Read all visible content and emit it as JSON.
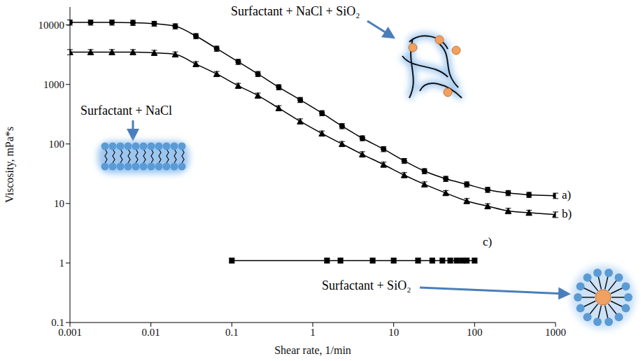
{
  "chart_data": {
    "type": "line",
    "log": true,
    "grid": false,
    "x_label": "Shear rate, 1/min",
    "y_label": "Viscosity, mPa*s",
    "xlim": [
      0.001,
      1000
    ],
    "ylim": [
      0.1,
      20000
    ],
    "xticks": [
      0.001,
      0.01,
      0.1,
      1,
      10,
      100,
      1000
    ],
    "yticks": [
      0.1,
      1,
      10,
      100,
      1000,
      10000
    ],
    "series": [
      {
        "name": "a)",
        "annotation": "Surfactant + NaCl + SiO₂",
        "color": "#000000",
        "marker": "circle",
        "line_style": "solid",
        "x": [
          0.001,
          0.0018,
          0.0033,
          0.006,
          0.011,
          0.02,
          0.036,
          0.065,
          0.12,
          0.21,
          0.38,
          0.7,
          1.3,
          2.3,
          4.1,
          7.5,
          13.5,
          24,
          44,
          80,
          145,
          260,
          470,
          1000
        ],
        "values": [
          11000,
          11000,
          11000,
          10900,
          10500,
          9500,
          6500,
          4000,
          2400,
          1500,
          900,
          550,
          330,
          200,
          125,
          82,
          52,
          35,
          26,
          21,
          17,
          15,
          14,
          13.5
        ],
        "errors": [
          1100,
          1100,
          1100,
          1100,
          1000,
          950,
          650,
          400,
          240,
          150,
          90,
          55,
          33,
          20,
          12,
          8,
          5,
          3.5,
          2.6,
          2.1,
          1.7,
          1.5,
          1.4,
          1.4
        ]
      },
      {
        "name": "b)",
        "annotation": "Surfactant + NaCl",
        "color": "#000000",
        "marker": "triangle",
        "line_style": "solid",
        "x": [
          0.001,
          0.0018,
          0.0033,
          0.006,
          0.011,
          0.02,
          0.036,
          0.065,
          0.12,
          0.21,
          0.38,
          0.7,
          1.3,
          2.3,
          4.1,
          7.5,
          13.5,
          24,
          44,
          80,
          145,
          260,
          470,
          1000
        ],
        "values": [
          3500,
          3500,
          3500,
          3500,
          3400,
          3200,
          2200,
          1500,
          950,
          650,
          400,
          240,
          150,
          100,
          67,
          45,
          30,
          21,
          15,
          11,
          9,
          7.5,
          7,
          6.5
        ],
        "errors": [
          350,
          350,
          350,
          350,
          340,
          320,
          220,
          150,
          95,
          65,
          40,
          24,
          15,
          10,
          7,
          4.5,
          3,
          2.1,
          1.5,
          1.1,
          0.9,
          0.8,
          0.7,
          0.7
        ]
      },
      {
        "name": "c)",
        "annotation": "Surfactant + SiO₂",
        "color": "#000000",
        "marker": "square",
        "line_style": "solid",
        "x": [
          0.1,
          1.5,
          2.2,
          5.5,
          10,
          20,
          30,
          40,
          50,
          60,
          70,
          80,
          100
        ],
        "values": [
          1.1,
          1.1,
          1.1,
          1.1,
          1.1,
          1.1,
          1.1,
          1.1,
          1.1,
          1.1,
          1.1,
          1.1,
          1.1
        ],
        "errors": [
          0.1,
          0.1,
          0.1,
          0.1,
          0.1,
          0.1,
          0.1,
          0.1,
          0.1,
          0.1,
          0.1,
          0.1,
          0.1
        ]
      }
    ]
  }
}
